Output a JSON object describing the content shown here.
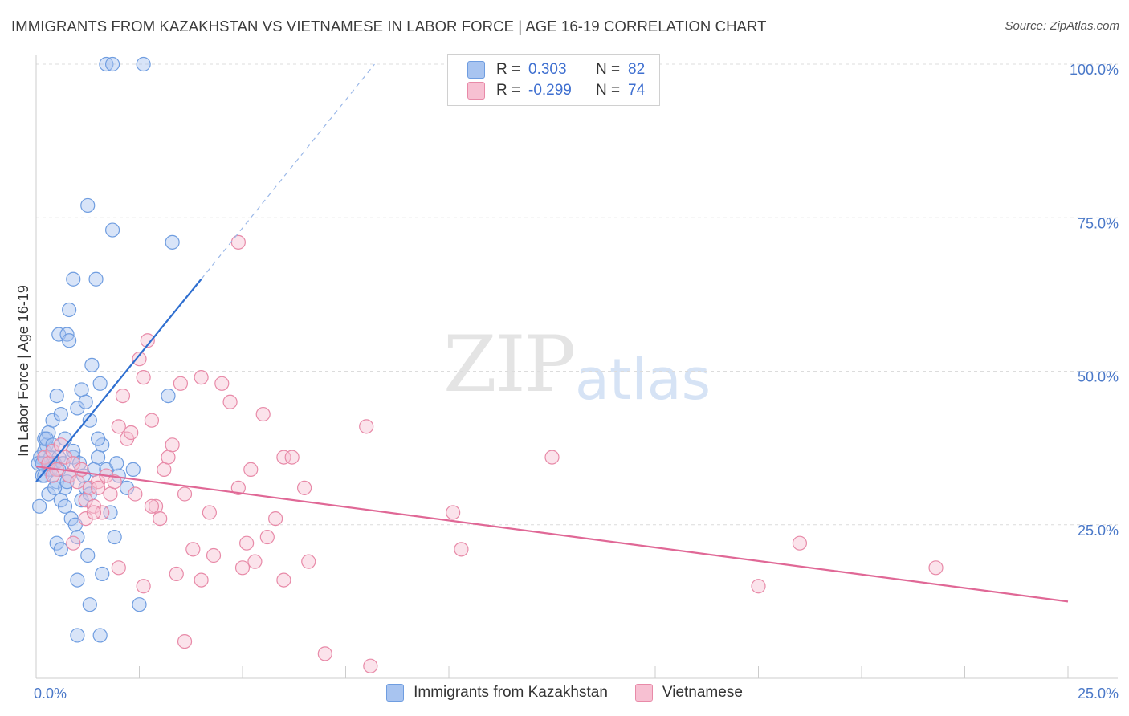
{
  "title": "IMMIGRANTS FROM KAZAKHSTAN VS VIETNAMESE IN LABOR FORCE | AGE 16-19 CORRELATION CHART",
  "source": "Source: ZipAtlas.com",
  "watermark": {
    "zip": "ZIP",
    "atlas": "atlas"
  },
  "legend": {
    "rows": [
      {
        "r_label": "R =",
        "r_value": "0.303",
        "n_label": "N =",
        "n_value": "82",
        "color": "#a8c4f0",
        "border": "#6f9de0"
      },
      {
        "r_label": "R =",
        "r_value": "-0.299",
        "n_label": "N =",
        "n_value": "74",
        "color": "#f7c0d2",
        "border": "#e88aa8"
      }
    ]
  },
  "bottom_legend": [
    {
      "label": "Immigrants from Kazakhstan",
      "color": "#a8c4f0",
      "border": "#6f9de0"
    },
    {
      "label": "Vietnamese",
      "color": "#f7c0d2",
      "border": "#e88aa8"
    }
  ],
  "chart_data": {
    "type": "scatter",
    "title": "IMMIGRANTS FROM KAZAKHSTAN VS VIETNAMESE IN LABOR FORCE | AGE 16-19 CORRELATION CHART",
    "xlabel": "",
    "ylabel": "In Labor Force | Age 16-19",
    "xlim": [
      0,
      25
    ],
    "ylim": [
      0,
      100
    ],
    "x_tick_labels": [
      "0.0%",
      "25.0%"
    ],
    "y_ticks": [
      25,
      50,
      75,
      100
    ],
    "y_tick_labels": [
      "25.0%",
      "50.0%",
      "75.0%",
      "100.0%"
    ],
    "grid": "horizontal-dashed",
    "series": [
      {
        "name": "Immigrants from Kazakhstan",
        "color": "#6f9de0",
        "fill": "#a8c4f0",
        "trend": {
          "x": [
            0,
            4.0
          ],
          "y": [
            32.0,
            65.0
          ],
          "extended_to": [
            8.2,
            100.0
          ]
        },
        "points": [
          [
            0.1,
            36
          ],
          [
            0.15,
            35
          ],
          [
            0.2,
            37
          ],
          [
            0.25,
            38
          ],
          [
            0.3,
            34
          ],
          [
            0.35,
            36
          ],
          [
            0.4,
            35
          ],
          [
            0.2,
            39
          ],
          [
            0.3,
            40
          ],
          [
            0.15,
            33
          ],
          [
            0.4,
            42
          ],
          [
            0.5,
            46
          ],
          [
            0.6,
            43
          ],
          [
            0.55,
            36
          ],
          [
            0.45,
            35
          ],
          [
            0.5,
            32
          ],
          [
            0.6,
            29
          ],
          [
            0.7,
            31
          ],
          [
            0.8,
            33
          ],
          [
            0.9,
            36
          ],
          [
            0.5,
            22
          ],
          [
            0.6,
            21
          ],
          [
            0.7,
            28
          ],
          [
            0.85,
            26
          ],
          [
            0.95,
            25
          ],
          [
            1.0,
            23
          ],
          [
            1.1,
            29
          ],
          [
            1.2,
            31
          ],
          [
            1.3,
            30
          ],
          [
            1.25,
            20
          ],
          [
            1.4,
            34
          ],
          [
            1.5,
            36
          ],
          [
            1.6,
            38
          ],
          [
            1.7,
            34
          ],
          [
            1.8,
            27
          ],
          [
            1.9,
            23
          ],
          [
            2.0,
            33
          ],
          [
            2.2,
            31
          ],
          [
            2.35,
            34
          ],
          [
            1.0,
            44
          ],
          [
            1.1,
            47
          ],
          [
            1.2,
            45
          ],
          [
            1.3,
            42
          ],
          [
            1.35,
            51
          ],
          [
            1.5,
            39
          ],
          [
            1.55,
            48
          ],
          [
            0.55,
            56
          ],
          [
            0.75,
            56
          ],
          [
            0.8,
            55
          ],
          [
            0.8,
            60
          ],
          [
            0.9,
            65
          ],
          [
            1.45,
            65
          ],
          [
            1.25,
            77
          ],
          [
            1.85,
            73
          ],
          [
            3.3,
            71
          ],
          [
            3.2,
            46
          ],
          [
            2.5,
            12
          ],
          [
            1.3,
            12
          ],
          [
            1.0,
            16
          ],
          [
            1.6,
            17
          ],
          [
            1.0,
            7
          ],
          [
            1.55,
            7
          ],
          [
            1.7,
            100
          ],
          [
            1.85,
            100
          ],
          [
            2.6,
            100
          ],
          [
            0.08,
            28
          ],
          [
            0.3,
            30
          ],
          [
            0.9,
            37
          ],
          [
            0.7,
            39
          ],
          [
            0.35,
            34
          ],
          [
            0.25,
            39
          ],
          [
            0.05,
            35
          ],
          [
            0.45,
            31
          ],
          [
            0.75,
            32
          ],
          [
            1.05,
            35
          ],
          [
            1.15,
            33
          ],
          [
            0.65,
            35
          ],
          [
            0.2,
            33
          ],
          [
            0.4,
            38
          ],
          [
            1.95,
            35
          ],
          [
            0.15,
            35
          ],
          [
            0.55,
            34
          ]
        ]
      },
      {
        "name": "Vietnamese",
        "color": "#e88aa8",
        "fill": "#f7c0d2",
        "trend": {
          "x": [
            0,
            25.0
          ],
          "y": [
            34.5,
            12.5
          ]
        },
        "points": [
          [
            0.2,
            36
          ],
          [
            0.3,
            35
          ],
          [
            0.4,
            37
          ],
          [
            0.5,
            34
          ],
          [
            0.6,
            38
          ],
          [
            0.7,
            36
          ],
          [
            0.8,
            33
          ],
          [
            0.9,
            35
          ],
          [
            1.0,
            32
          ],
          [
            1.1,
            34
          ],
          [
            1.2,
            29
          ],
          [
            1.3,
            31
          ],
          [
            1.4,
            28
          ],
          [
            1.5,
            32
          ],
          [
            1.6,
            27
          ],
          [
            1.7,
            33
          ],
          [
            1.8,
            30
          ],
          [
            1.9,
            32
          ],
          [
            2.0,
            41
          ],
          [
            2.1,
            46
          ],
          [
            2.2,
            39
          ],
          [
            2.3,
            40
          ],
          [
            2.4,
            30
          ],
          [
            2.5,
            52
          ],
          [
            2.6,
            49
          ],
          [
            2.7,
            55
          ],
          [
            2.8,
            42
          ],
          [
            2.9,
            28
          ],
          [
            3.0,
            26
          ],
          [
            3.1,
            34
          ],
          [
            3.2,
            36
          ],
          [
            3.3,
            38
          ],
          [
            3.5,
            48
          ],
          [
            3.6,
            30
          ],
          [
            3.8,
            21
          ],
          [
            4.0,
            49
          ],
          [
            4.2,
            27
          ],
          [
            4.3,
            20
          ],
          [
            4.5,
            48
          ],
          [
            4.7,
            45
          ],
          [
            4.9,
            31
          ],
          [
            5.0,
            18
          ],
          [
            5.1,
            22
          ],
          [
            5.2,
            34
          ],
          [
            5.5,
            43
          ],
          [
            5.6,
            23
          ],
          [
            5.8,
            26
          ],
          [
            6.0,
            36
          ],
          [
            6.2,
            36
          ],
          [
            6.5,
            31
          ],
          [
            2.0,
            18
          ],
          [
            2.6,
            15
          ],
          [
            3.4,
            17
          ],
          [
            3.6,
            6
          ],
          [
            4.0,
            16
          ],
          [
            5.3,
            19
          ],
          [
            6.0,
            16
          ],
          [
            6.6,
            19
          ],
          [
            10.1,
            27
          ],
          [
            10.3,
            21
          ],
          [
            12.5,
            36
          ],
          [
            17.5,
            15
          ],
          [
            18.5,
            22
          ],
          [
            21.8,
            18
          ],
          [
            8.0,
            41
          ],
          [
            4.9,
            71
          ],
          [
            7.0,
            4
          ],
          [
            8.1,
            2
          ],
          [
            1.2,
            26
          ],
          [
            0.9,
            22
          ],
          [
            1.5,
            31
          ],
          [
            0.4,
            33
          ],
          [
            2.8,
            28
          ],
          [
            1.4,
            27
          ]
        ]
      }
    ]
  }
}
